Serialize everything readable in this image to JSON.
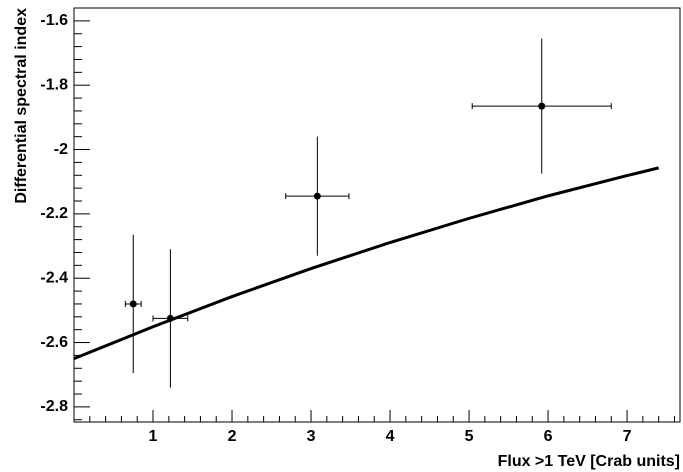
{
  "chart_data": {
    "type": "scatter",
    "x_label": "Flux >1 TeV [Crab units]",
    "y_label": "Differential spectral index",
    "xlim": [
      0,
      7.67
    ],
    "ylim": [
      -2.847,
      -1.56
    ],
    "xticks": [
      1,
      2,
      3,
      4,
      5,
      6,
      7
    ],
    "yticks": [
      -2.8,
      -2.6,
      -2.4,
      -2.2,
      -2,
      -1.8,
      -1.6
    ],
    "series": [
      {
        "type": "scatter",
        "color": "#000000",
        "x": [
          0.75,
          1.22,
          3.08,
          5.92
        ],
        "values": [
          -2.48,
          -2.525,
          -2.145,
          -1.865
        ],
        "xerr": [
          0.1,
          0.22,
          0.4,
          0.88
        ],
        "yerr": [
          0.215,
          0.215,
          0.185,
          0.21
        ]
      },
      {
        "type": "line",
        "color": "#000000",
        "x": [
          0,
          1,
          2,
          3,
          4,
          5,
          6,
          7,
          7.4
        ],
        "values": [
          -2.65,
          -2.551,
          -2.457,
          -2.37,
          -2.289,
          -2.214,
          -2.144,
          -2.081,
          -2.057
        ]
      }
    ]
  }
}
